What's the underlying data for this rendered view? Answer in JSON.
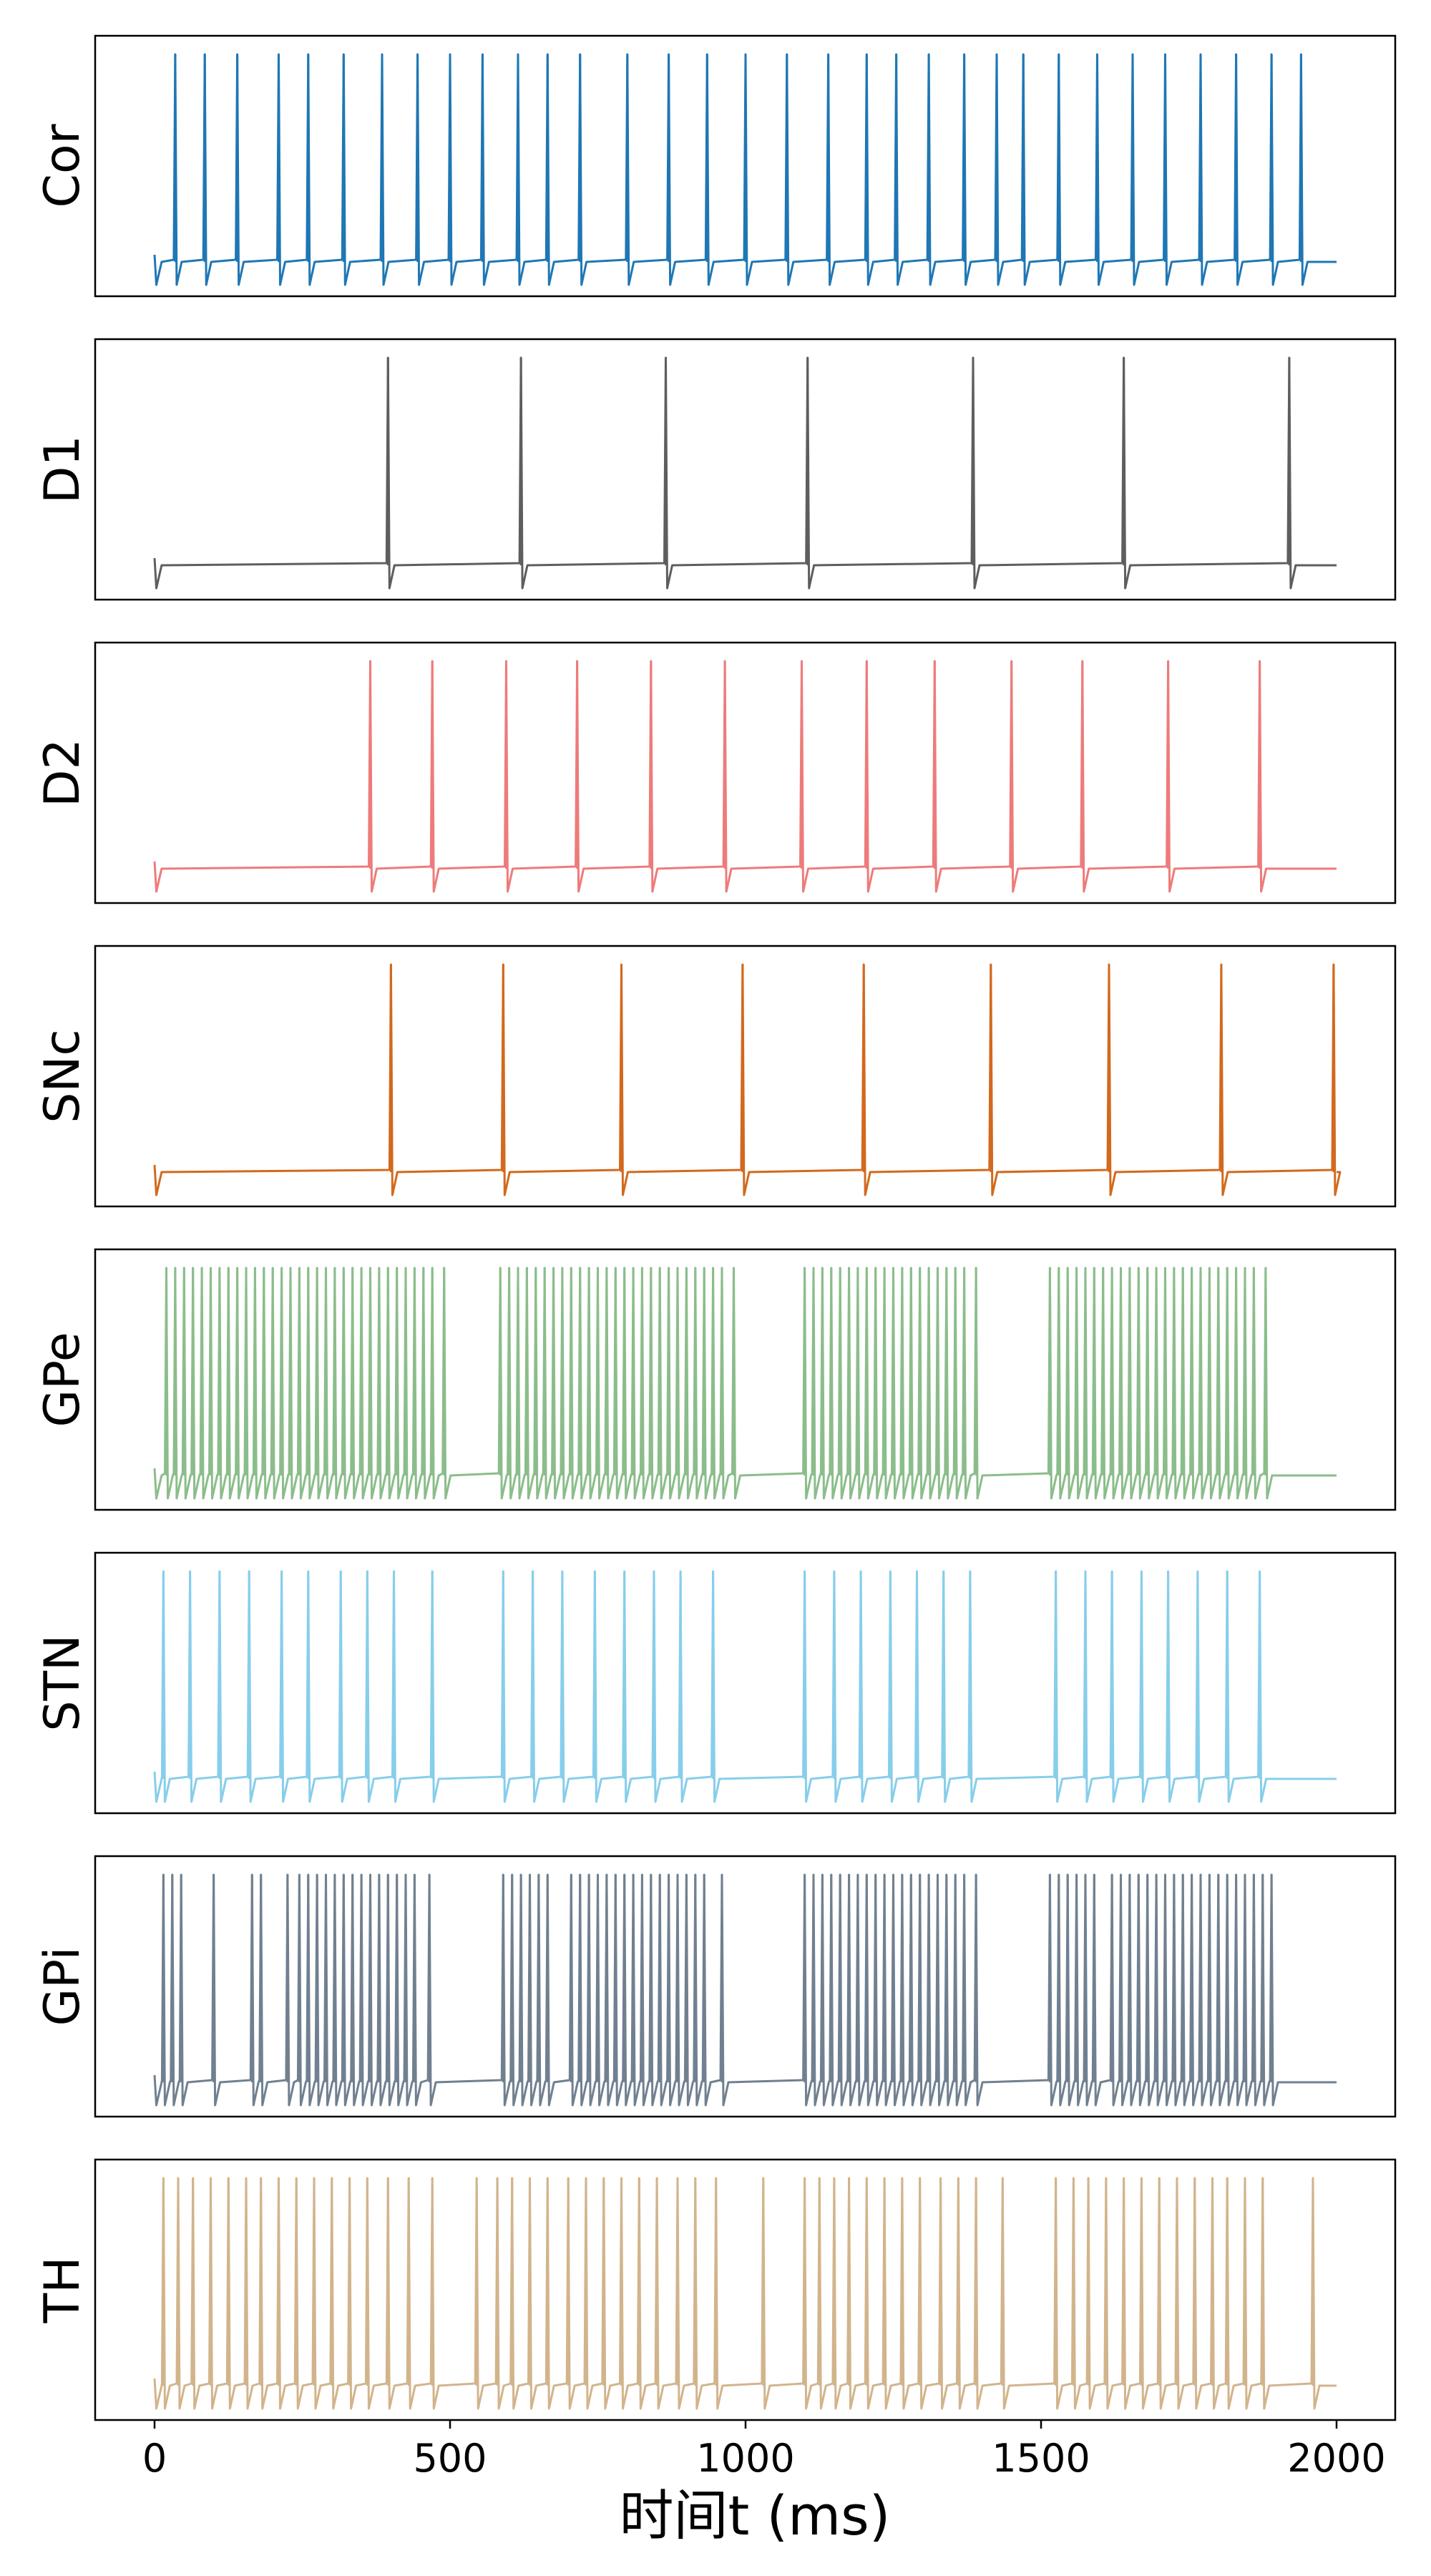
{
  "chart_data": {
    "type": "line",
    "title": "",
    "xlabel": "时间t (ms)",
    "xlim": [
      0,
      2000
    ],
    "xticks": [
      "0",
      "500",
      "1000",
      "1500",
      "2000"
    ],
    "xtick_values": [
      0,
      500,
      1000,
      1500,
      2000
    ],
    "grid": false,
    "legend": "none",
    "series": [
      {
        "name": "Cor",
        "color": "#1f77b4",
        "spike_times": [
          35,
          85,
          140,
          210,
          260,
          320,
          385,
          445,
          500,
          555,
          615,
          665,
          720,
          800,
          870,
          935,
          1000,
          1070,
          1140,
          1205,
          1255,
          1310,
          1370,
          1425,
          1470,
          1530,
          1595,
          1655,
          1710,
          1770,
          1830,
          1890,
          1940
        ]
      },
      {
        "name": "D1",
        "color": "#5e5e5e",
        "spike_times": [
          395,
          620,
          865,
          1105,
          1385,
          1640,
          1920
        ]
      },
      {
        "name": "D2",
        "color": "#ee7b7b",
        "spike_times": [
          365,
          470,
          595,
          715,
          840,
          965,
          1095,
          1205,
          1320,
          1450,
          1570,
          1715,
          1870
        ]
      },
      {
        "name": "SNc",
        "color": "#d2691e",
        "spike_times": [
          400,
          590,
          790,
          995,
          1200,
          1415,
          1615,
          1805,
          1995
        ]
      },
      {
        "name": "GPe",
        "color": "#8bbd8b",
        "spike_times": [
          20,
          35,
          50,
          65,
          80,
          95,
          110,
          125,
          140,
          155,
          170,
          185,
          200,
          215,
          230,
          245,
          260,
          275,
          290,
          305,
          320,
          335,
          350,
          365,
          380,
          395,
          410,
          425,
          440,
          455,
          470,
          490,
          585,
          600,
          615,
          630,
          645,
          660,
          675,
          690,
          705,
          720,
          735,
          750,
          765,
          780,
          795,
          810,
          825,
          840,
          855,
          870,
          885,
          900,
          915,
          930,
          945,
          960,
          980,
          1100,
          1115,
          1130,
          1145,
          1160,
          1175,
          1190,
          1205,
          1220,
          1235,
          1250,
          1265,
          1280,
          1295,
          1310,
          1325,
          1340,
          1355,
          1370,
          1390,
          1515,
          1530,
          1545,
          1560,
          1575,
          1590,
          1605,
          1620,
          1635,
          1650,
          1665,
          1680,
          1695,
          1710,
          1725,
          1740,
          1755,
          1770,
          1785,
          1800,
          1815,
          1830,
          1845,
          1860,
          1880
        ]
      },
      {
        "name": "STN",
        "color": "#87ceeb",
        "spike_times": [
          15,
          60,
          110,
          160,
          215,
          260,
          315,
          360,
          405,
          470,
          590,
          640,
          690,
          745,
          795,
          845,
          890,
          945,
          1100,
          1150,
          1195,
          1245,
          1290,
          1335,
          1380,
          1525,
          1575,
          1620,
          1670,
          1715,
          1765,
          1815,
          1870
        ]
      },
      {
        "name": "GPi",
        "color": "#708090",
        "spike_times": [
          15,
          30,
          45,
          100,
          165,
          180,
          225,
          245,
          260,
          275,
          290,
          305,
          320,
          335,
          350,
          365,
          380,
          395,
          410,
          425,
          440,
          465,
          590,
          605,
          620,
          635,
          650,
          665,
          705,
          720,
          735,
          750,
          765,
          780,
          795,
          810,
          825,
          840,
          855,
          870,
          885,
          900,
          915,
          930,
          960,
          1100,
          1115,
          1130,
          1145,
          1160,
          1175,
          1190,
          1205,
          1220,
          1235,
          1250,
          1265,
          1280,
          1295,
          1310,
          1325,
          1340,
          1355,
          1370,
          1390,
          1515,
          1530,
          1545,
          1560,
          1575,
          1590,
          1620,
          1635,
          1650,
          1665,
          1680,
          1695,
          1710,
          1725,
          1740,
          1755,
          1770,
          1785,
          1800,
          1815,
          1830,
          1845,
          1860,
          1875,
          1890
        ]
      },
      {
        "name": "TH",
        "color": "#d2b48c",
        "spike_times": [
          15,
          40,
          65,
          95,
          125,
          155,
          180,
          210,
          240,
          270,
          300,
          330,
          360,
          395,
          430,
          470,
          545,
          580,
          605,
          635,
          665,
          700,
          730,
          760,
          790,
          820,
          850,
          885,
          915,
          950,
          1030,
          1100,
          1125,
          1150,
          1175,
          1205,
          1235,
          1265,
          1295,
          1330,
          1360,
          1390,
          1435,
          1525,
          1555,
          1580,
          1610,
          1640,
          1670,
          1700,
          1730,
          1760,
          1790,
          1815,
          1845,
          1875,
          1960
        ]
      }
    ]
  }
}
